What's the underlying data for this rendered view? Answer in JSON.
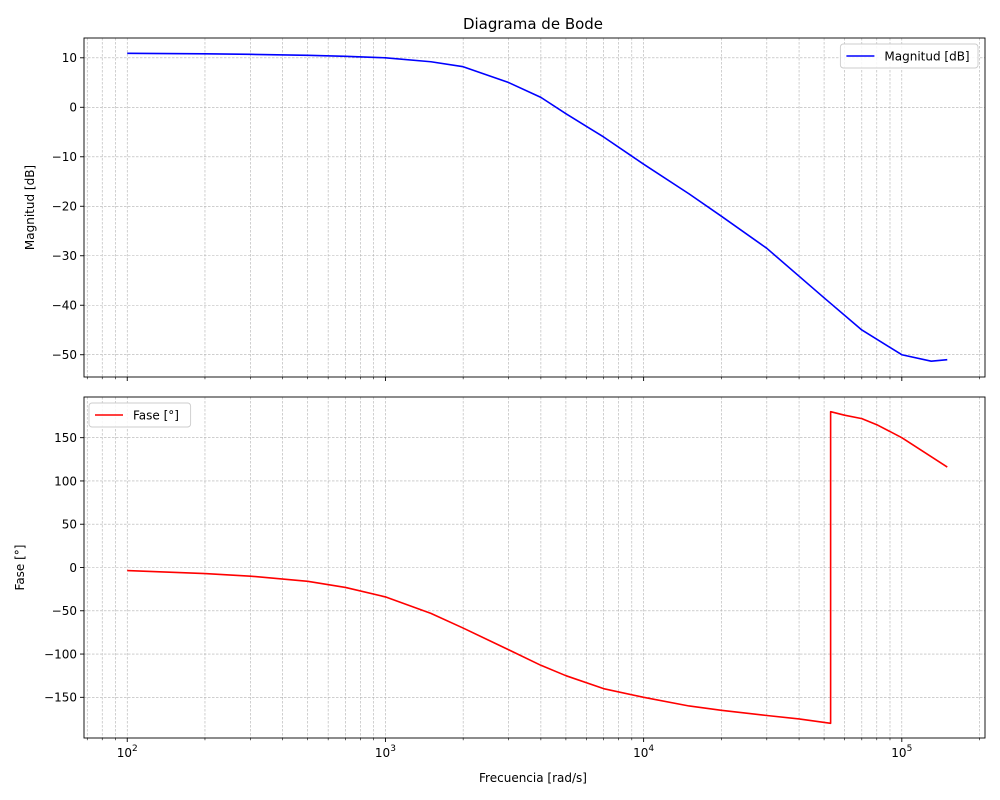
{
  "figure": {
    "title": "Diagrama de Bode",
    "xlabel": "Frecuencia [rad/s]"
  },
  "chart_data": [
    {
      "type": "line",
      "ylabel": "Magnitud [dB]",
      "xscale": "log",
      "xlim": [
        68,
        210000
      ],
      "ylim": [
        -54.5,
        14
      ],
      "yticks": [
        10,
        0,
        -10,
        -20,
        -30,
        -40,
        -50
      ],
      "xticks": [
        100,
        1000,
        10000,
        100000
      ],
      "xtick_labels": [
        {
          "base": "10",
          "exp": "2"
        },
        {
          "base": "10",
          "exp": "3"
        },
        {
          "base": "10",
          "exp": "4"
        },
        {
          "base": "10",
          "exp": "5"
        }
      ],
      "grid": true,
      "legend": "top-right",
      "series": [
        {
          "name": "Magnitud [dB]",
          "color": "#0000ff",
          "x": [
            100,
            200,
            300,
            500,
            700,
            1000,
            1500,
            2000,
            3000,
            4000,
            5000,
            7000,
            10000,
            15000,
            20000,
            30000,
            50000,
            70000,
            100000,
            130000,
            150000
          ],
          "y": [
            10.9,
            10.8,
            10.7,
            10.5,
            10.3,
            10.0,
            9.2,
            8.2,
            5.0,
            2.0,
            -1.3,
            -6.0,
            -11.5,
            -17.5,
            -22.0,
            -28.5,
            -38.5,
            -45.0,
            -50.0,
            -51.3,
            -51.0
          ]
        }
      ]
    },
    {
      "type": "line",
      "ylabel": "Fase [°]",
      "xscale": "log",
      "xlim": [
        68,
        210000
      ],
      "ylim": [
        -197,
        197
      ],
      "yticks": [
        150,
        100,
        50,
        0,
        -50,
        -100,
        -150
      ],
      "xticks": [
        100,
        1000,
        10000,
        100000
      ],
      "xtick_labels": [
        {
          "base": "10",
          "exp": "2"
        },
        {
          "base": "10",
          "exp": "3"
        },
        {
          "base": "10",
          "exp": "4"
        },
        {
          "base": "10",
          "exp": "5"
        }
      ],
      "grid": true,
      "legend": "top-left",
      "series": [
        {
          "name": "Fase [°]",
          "color": "#ff0000",
          "x": [
            100,
            200,
            300,
            500,
            700,
            1000,
            1500,
            2000,
            3000,
            4000,
            5000,
            7000,
            10000,
            15000,
            20000,
            30000,
            40000,
            53000,
            53000,
            60000,
            70000,
            80000,
            100000,
            130000,
            150000
          ],
          "y": [
            -3.5,
            -7,
            -10,
            -16,
            -23,
            -34,
            -53,
            -70,
            -95,
            -113,
            -125,
            -140,
            -150,
            -160,
            -165,
            -171,
            -175,
            -180,
            180,
            176,
            172,
            165,
            150,
            128,
            116
          ]
        }
      ]
    }
  ]
}
